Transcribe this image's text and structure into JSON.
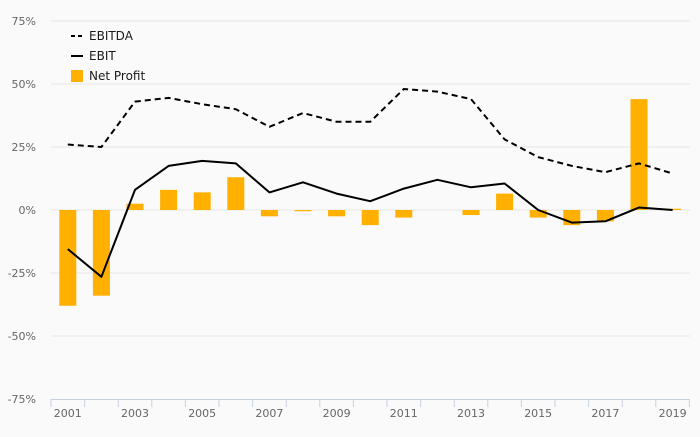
{
  "chart_data": {
    "type": "bar",
    "categories": [
      "2001",
      "2002",
      "2003",
      "2004",
      "2005",
      "2006",
      "2007",
      "2008",
      "2009",
      "2010",
      "2011",
      "2012",
      "2013",
      "2014",
      "2015",
      "2016",
      "2017",
      "2018",
      "2019"
    ],
    "x_tick_labels": [
      "2001",
      "2003",
      "2005",
      "2007",
      "2009",
      "2011",
      "2013",
      "2015",
      "2017",
      "2019"
    ],
    "y_tick_labels": [
      "75%",
      "50%",
      "25%",
      "0%",
      "-25%",
      "-50%",
      "-75%"
    ],
    "y_ticks": [
      75,
      50,
      25,
      0,
      -25,
      -50,
      -75
    ],
    "ylim": [
      -75,
      75
    ],
    "y_unit": "%",
    "grid": true,
    "legend_position": "top-left",
    "series": [
      {
        "name": "EBITDA",
        "type": "line",
        "style": "dashed",
        "color": "#000000",
        "values": [
          26,
          25,
          43,
          44.5,
          42,
          40,
          33,
          38.5,
          35,
          35,
          48,
          47,
          44,
          28,
          21,
          17.5,
          15,
          18.5,
          14.5
        ]
      },
      {
        "name": "EBIT",
        "type": "line",
        "style": "solid",
        "color": "#000000",
        "values": [
          -15.5,
          -26.5,
          8,
          17.5,
          19.5,
          18.5,
          7,
          11,
          6.5,
          3.5,
          8.5,
          12,
          9,
          10.5,
          0,
          -5,
          -4.5,
          1,
          0
        ]
      },
      {
        "name": "Net Profit",
        "type": "bar",
        "color": "#ffb000",
        "values": [
          -38,
          -34,
          2.5,
          8,
          7,
          13,
          -2.5,
          -0.5,
          -2.5,
          -6,
          -3,
          0,
          -2,
          6.5,
          -3,
          -6,
          -4.5,
          44,
          0.5
        ]
      }
    ]
  }
}
